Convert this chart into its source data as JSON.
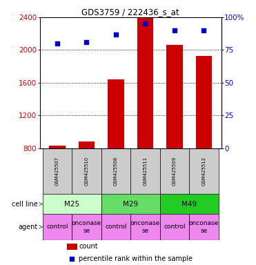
{
  "title": "GDS3759 / 222436_s_at",
  "samples": [
    "GSM425507",
    "GSM425510",
    "GSM425508",
    "GSM425511",
    "GSM425509",
    "GSM425512"
  ],
  "counts": [
    830,
    880,
    1640,
    2390,
    2060,
    1930
  ],
  "percentile_ranks": [
    80,
    81,
    87,
    95,
    90,
    90
  ],
  "ylim_left": [
    800,
    2400
  ],
  "ylim_right": [
    0,
    100
  ],
  "yticks_left": [
    800,
    1200,
    1600,
    2000,
    2400
  ],
  "yticks_right": [
    0,
    25,
    50,
    75,
    100
  ],
  "cell_lines": [
    {
      "label": "M25",
      "span": [
        0,
        2
      ],
      "color": "#ccffcc"
    },
    {
      "label": "M29",
      "span": [
        2,
        4
      ],
      "color": "#66dd66"
    },
    {
      "label": "M49",
      "span": [
        4,
        6
      ],
      "color": "#22cc22"
    }
  ],
  "agents": [
    "control",
    "onconase",
    "control",
    "onconase",
    "control",
    "onconase"
  ],
  "agent_color": "#ee88ee",
  "bar_color": "#cc0000",
  "dot_color": "#0000cc",
  "bar_width": 0.55,
  "dot_size": 22,
  "left_label_color": "#cc0000",
  "right_label_color": "#0000cc",
  "legend_count_color": "#cc0000",
  "legend_pct_color": "#0000cc",
  "background_color": "#ffffff",
  "sample_label_bg": "#cccccc"
}
